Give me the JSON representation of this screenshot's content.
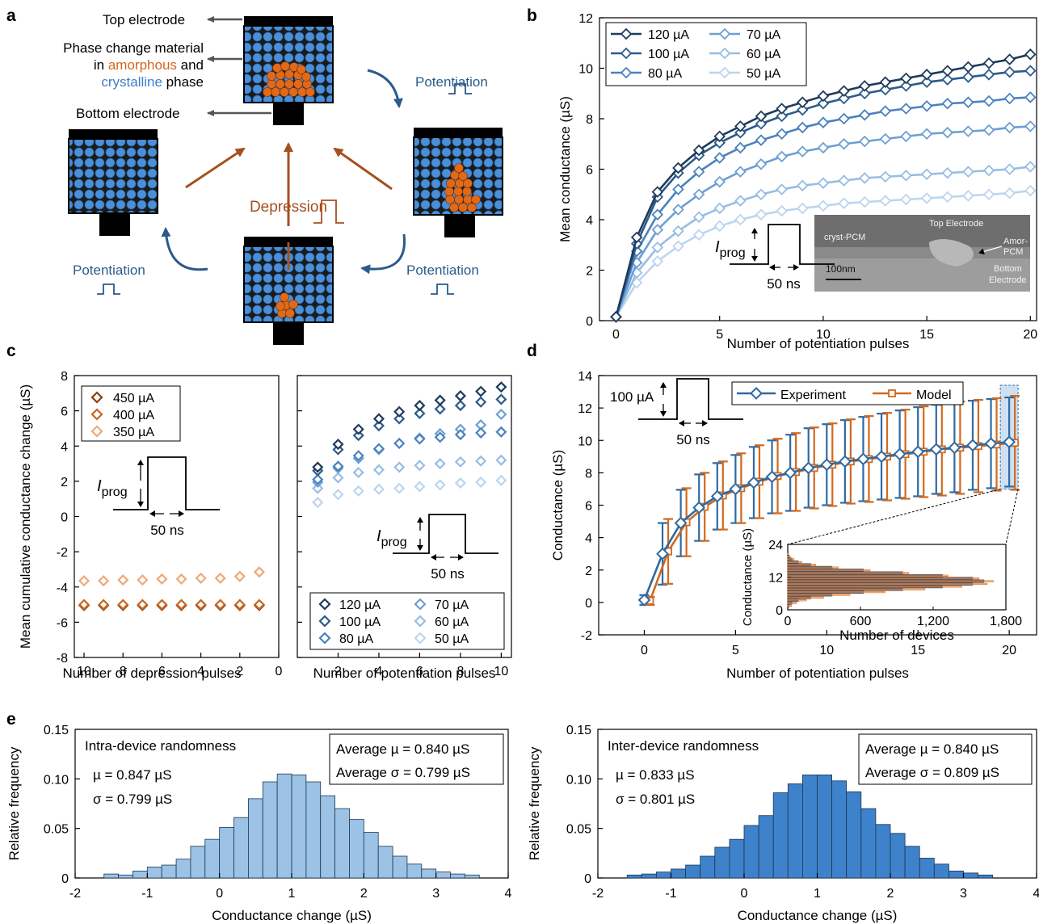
{
  "panels": {
    "a": {
      "letter": "a",
      "labels": {
        "top_electrode": "Top electrode",
        "pcm_line1": "Phase change material",
        "pcm_line2_pre": "in ",
        "pcm_amorphous": "amorphous",
        "pcm_line2_post": " and",
        "pcm_crystalline": "crystalline",
        "pcm_line3_post": " phase",
        "bottom_electrode": "Bottom electrode",
        "potentiation": "Potentiation",
        "depression": "Depression"
      },
      "colors": {
        "amorphous": "#d4661f",
        "crystalline": "#3d7ec9",
        "potentiation": "#2a5b8c",
        "depression": "#a5501f"
      }
    },
    "b": {
      "letter": "b",
      "inset_labels": {
        "top": "Top Electrode",
        "cryst": "cryst-PCM",
        "amor1": "Amor-",
        "amor2": "PCM",
        "bottom1": "Bottom",
        "bottom2": "Electrode",
        "scale": "100nm"
      },
      "pulse_label": "I",
      "pulse_sub": "prog",
      "pulse_width": "50 ns"
    },
    "c": {
      "letter": "c",
      "pulse_label": "I",
      "pulse_sub": "prog",
      "pulse_width": "50 ns"
    },
    "d": {
      "letter": "d",
      "pulse_amp": "100 µA",
      "pulse_width": "50 ns"
    },
    "e": {
      "letter": "e"
    }
  },
  "chart_data": [
    {
      "id": "b",
      "type": "line",
      "xlabel": "Number of potentiation pulses",
      "ylabel": "Mean conductance (µS)",
      "xlim": [
        0,
        20
      ],
      "ylim": [
        0,
        12
      ],
      "xticks": [
        "0",
        "5",
        "10",
        "15",
        "20"
      ],
      "yticks": [
        "0",
        "2",
        "4",
        "6",
        "8",
        "10",
        "12"
      ],
      "legend": "top-left",
      "x": [
        0,
        1,
        2,
        3,
        4,
        5,
        6,
        7,
        8,
        9,
        10,
        11,
        12,
        13,
        14,
        15,
        16,
        17,
        18,
        19,
        20
      ],
      "series": [
        {
          "name": "120 µA",
          "color": "#1f3b5c",
          "values": [
            0.15,
            3.3,
            5.1,
            6.05,
            6.75,
            7.3,
            7.7,
            8.1,
            8.4,
            8.65,
            8.9,
            9.1,
            9.3,
            9.45,
            9.6,
            9.75,
            9.9,
            10.05,
            10.2,
            10.35,
            10.55
          ]
        },
        {
          "name": "100 µA",
          "color": "#2d5b8a",
          "values": [
            0.15,
            3.05,
            4.9,
            5.85,
            6.55,
            7.05,
            7.45,
            7.8,
            8.1,
            8.35,
            8.6,
            8.8,
            9.0,
            9.15,
            9.3,
            9.45,
            9.55,
            9.65,
            9.75,
            9.85,
            9.9
          ]
        },
        {
          "name": "80 µA",
          "color": "#4a82bf",
          "values": [
            0.15,
            2.75,
            4.2,
            5.2,
            5.9,
            6.45,
            6.85,
            7.15,
            7.4,
            7.65,
            7.85,
            8.0,
            8.15,
            8.3,
            8.4,
            8.5,
            8.6,
            8.65,
            8.7,
            8.8,
            8.85
          ]
        },
        {
          "name": "70 µA",
          "color": "#6d9fd3",
          "values": [
            0.15,
            2.3,
            3.6,
            4.4,
            5.0,
            5.5,
            5.9,
            6.2,
            6.5,
            6.7,
            6.85,
            7.0,
            7.1,
            7.2,
            7.3,
            7.4,
            7.45,
            7.5,
            7.55,
            7.65,
            7.7
          ]
        },
        {
          "name": "60 µA",
          "color": "#97bde4",
          "values": [
            0.15,
            1.9,
            2.9,
            3.55,
            4.1,
            4.45,
            4.75,
            5.0,
            5.2,
            5.35,
            5.45,
            5.55,
            5.65,
            5.7,
            5.75,
            5.8,
            5.85,
            5.9,
            5.95,
            6.0,
            6.1
          ]
        },
        {
          "name": "50 µA",
          "color": "#bcd5ee",
          "values": [
            0.15,
            1.5,
            2.35,
            2.95,
            3.4,
            3.75,
            4.0,
            4.2,
            4.35,
            4.45,
            4.55,
            4.65,
            4.7,
            4.75,
            4.8,
            4.85,
            4.9,
            4.95,
            5.0,
            5.05,
            5.15
          ]
        }
      ]
    },
    {
      "id": "c-left",
      "type": "scatter",
      "xlabel": "Number of depression pulses",
      "ylabel": "Mean cumulative conductance change (µS)",
      "xlim": [
        10.5,
        0
      ],
      "ylim": [
        -8,
        8
      ],
      "xticks": [
        "10",
        "8",
        "6",
        "4",
        "2",
        "0"
      ],
      "yticks": [
        "-8",
        "-6",
        "-4",
        "-2",
        "0",
        "2",
        "4",
        "6",
        "8"
      ],
      "legend": "top-left",
      "x": [
        10,
        9,
        8,
        7,
        6,
        5,
        4,
        3,
        2,
        1
      ],
      "series": [
        {
          "name": "450 µA",
          "color": "#8a3e10",
          "values": [
            -5.05,
            -5.05,
            -5.05,
            -5.05,
            -5.05,
            -5.05,
            -5.05,
            -5.05,
            -5.05,
            -5.05
          ]
        },
        {
          "name": "400 µA",
          "color": "#c9651e",
          "values": [
            -5.0,
            -5.0,
            -5.0,
            -5.0,
            -5.0,
            -5.0,
            -5.0,
            -5.0,
            -5.0,
            -5.0
          ]
        },
        {
          "name": "350 µA",
          "color": "#f0a878",
          "values": [
            -3.65,
            -3.65,
            -3.6,
            -3.6,
            -3.55,
            -3.55,
            -3.5,
            -3.5,
            -3.4,
            -3.15
          ]
        }
      ]
    },
    {
      "id": "c-right",
      "type": "scatter",
      "xlabel": "Number of potentiation pulses",
      "xlim": [
        0,
        10.5
      ],
      "ylim": [
        -8,
        8
      ],
      "xticks": [
        "2",
        "4",
        "6",
        "8",
        "10"
      ],
      "legend": "bottom-right",
      "x": [
        1,
        2,
        3,
        4,
        5,
        6,
        7,
        8,
        9,
        10
      ],
      "series": [
        {
          "name": "120 µA",
          "color": "#1f3b5c",
          "values": [
            2.8,
            4.1,
            4.95,
            5.55,
            5.95,
            6.3,
            6.6,
            6.85,
            7.1,
            7.35
          ]
        },
        {
          "name": "100 µA",
          "color": "#2d5b8a",
          "values": [
            2.6,
            3.8,
            4.6,
            5.15,
            5.55,
            5.85,
            6.1,
            6.3,
            6.5,
            6.65
          ]
        },
        {
          "name": "80 µA",
          "color": "#4a82bf",
          "values": [
            2.1,
            2.85,
            3.45,
            3.85,
            4.15,
            4.4,
            4.5,
            4.65,
            4.75,
            4.8
          ]
        },
        {
          "name": "70 µA",
          "color": "#6d9fd3",
          "values": [
            1.95,
            2.75,
            3.3,
            3.8,
            4.15,
            4.45,
            4.7,
            4.95,
            5.2,
            5.8
          ]
        },
        {
          "name": "60 µA",
          "color": "#97bde4",
          "values": [
            1.6,
            2.2,
            2.5,
            2.65,
            2.8,
            2.9,
            3.0,
            3.1,
            3.15,
            3.2
          ]
        },
        {
          "name": "50 µA",
          "color": "#bcd5ee",
          "values": [
            0.8,
            1.25,
            1.45,
            1.55,
            1.6,
            1.7,
            1.8,
            1.9,
            1.95,
            2.05
          ]
        }
      ]
    },
    {
      "id": "d",
      "type": "line",
      "xlabel": "Number of potentiation pulses",
      "ylabel": "Conductance (µS)",
      "xlim": [
        -2.5,
        21.5
      ],
      "ylim": [
        -2,
        14
      ],
      "xticks": [
        "0",
        "5",
        "10",
        "15",
        "20"
      ],
      "yticks": [
        "-2",
        "0",
        "2",
        "4",
        "6",
        "8",
        "10",
        "12",
        "14"
      ],
      "legend": "top-right",
      "x": [
        0,
        1,
        2,
        3,
        4,
        5,
        6,
        7,
        8,
        9,
        10,
        11,
        12,
        13,
        14,
        15,
        16,
        17,
        18,
        19,
        20
      ],
      "series": [
        {
          "name": "Experiment",
          "color": "#2f6aa3",
          "values": [
            0.15,
            3.0,
            4.9,
            5.85,
            6.55,
            7.0,
            7.4,
            7.75,
            8.0,
            8.3,
            8.5,
            8.7,
            8.85,
            9.0,
            9.15,
            9.3,
            9.45,
            9.55,
            9.7,
            9.8,
            9.9
          ],
          "err": [
            0.3,
            1.9,
            2.05,
            2.05,
            2.05,
            2.1,
            2.2,
            2.25,
            2.35,
            2.45,
            2.5,
            2.55,
            2.6,
            2.65,
            2.7,
            2.75,
            2.75,
            2.75,
            2.75,
            2.75,
            2.75
          ]
        },
        {
          "name": "Model",
          "color": "#d2691e",
          "values": [
            0.1,
            3.15,
            4.95,
            5.9,
            6.6,
            7.05,
            7.45,
            7.8,
            8.05,
            8.3,
            8.5,
            8.7,
            8.85,
            9.0,
            9.15,
            9.3,
            9.45,
            9.55,
            9.65,
            9.75,
            9.85
          ],
          "err": [
            0.25,
            2.0,
            2.1,
            2.1,
            2.1,
            2.15,
            2.25,
            2.3,
            2.4,
            2.5,
            2.55,
            2.6,
            2.65,
            2.7,
            2.75,
            2.8,
            2.85,
            2.85,
            2.85,
            2.85,
            2.9
          ]
        }
      ]
    },
    {
      "id": "d-inset",
      "type": "bar",
      "xlabel": "Number of devices",
      "ylabel": "Conductance (µS)",
      "xlim": [
        0,
        1800
      ],
      "ylim": [
        0,
        24
      ],
      "xticks": [
        "0",
        "600",
        "1,200",
        "1,800"
      ],
      "yticks": [
        "0",
        "12",
        "24"
      ]
    },
    {
      "id": "e-left",
      "type": "bar",
      "title": "Intra-device randomness",
      "xlabel": "Conductance change (µS)",
      "ylabel": "Relative frequency",
      "xlim": [
        -2,
        4
      ],
      "ylim": [
        0,
        0.15
      ],
      "xticks": [
        "-2",
        "-1",
        "0",
        "1",
        "2",
        "3",
        "4"
      ],
      "yticks": [
        "0",
        "0.05",
        "0.10",
        "0.15"
      ],
      "color": "#9cc3e6",
      "bin_edges": [
        -1.6,
        -1.4,
        -1.2,
        -1.0,
        -0.8,
        -0.6,
        -0.4,
        -0.2,
        0.0,
        0.2,
        0.4,
        0.6,
        0.8,
        1.0,
        1.2,
        1.4,
        1.6,
        1.8,
        2.0,
        2.2,
        2.4,
        2.6,
        2.8,
        3.0,
        3.2,
        3.4,
        3.6
      ],
      "values": [
        0.004,
        0.003,
        0.007,
        0.011,
        0.013,
        0.019,
        0.032,
        0.039,
        0.051,
        0.061,
        0.08,
        0.097,
        0.105,
        0.104,
        0.097,
        0.083,
        0.07,
        0.059,
        0.046,
        0.032,
        0.022,
        0.014,
        0.009,
        0.006,
        0.004,
        0.003
      ],
      "annotations": {
        "mu": "µ = 0.847 µS",
        "sigma": "σ = 0.799 µS",
        "avg_mu": "Average µ = 0.840 µS",
        "avg_sigma": "Average σ = 0.799 µS"
      }
    },
    {
      "id": "e-right",
      "type": "bar",
      "title": "Inter-device randomness",
      "xlabel": "Conductance change (µS)",
      "ylabel": "Relative frequency",
      "xlim": [
        -2,
        4
      ],
      "ylim": [
        0,
        0.15
      ],
      "xticks": [
        "-2",
        "-1",
        "0",
        "1",
        "2",
        "3",
        "4"
      ],
      "yticks": [
        "0",
        "0.05",
        "0.10",
        "0.15"
      ],
      "color": "#3f82cc",
      "bin_edges": [
        -1.6,
        -1.4,
        -1.2,
        -1.0,
        -0.8,
        -0.6,
        -0.4,
        -0.2,
        0.0,
        0.2,
        0.4,
        0.6,
        0.8,
        1.0,
        1.2,
        1.4,
        1.6,
        1.8,
        2.0,
        2.2,
        2.4,
        2.6,
        2.8,
        3.0,
        3.2,
        3.4
      ],
      "values": [
        0.003,
        0.004,
        0.006,
        0.009,
        0.013,
        0.022,
        0.031,
        0.039,
        0.053,
        0.063,
        0.086,
        0.095,
        0.104,
        0.104,
        0.098,
        0.087,
        0.07,
        0.054,
        0.045,
        0.032,
        0.02,
        0.014,
        0.007,
        0.005,
        0.003
      ],
      "annotations": {
        "mu": "µ = 0.833 µS",
        "sigma": "σ = 0.801 µS",
        "avg_mu": "Average µ = 0.840 µS",
        "avg_sigma": "Average σ = 0.809 µS"
      }
    }
  ]
}
